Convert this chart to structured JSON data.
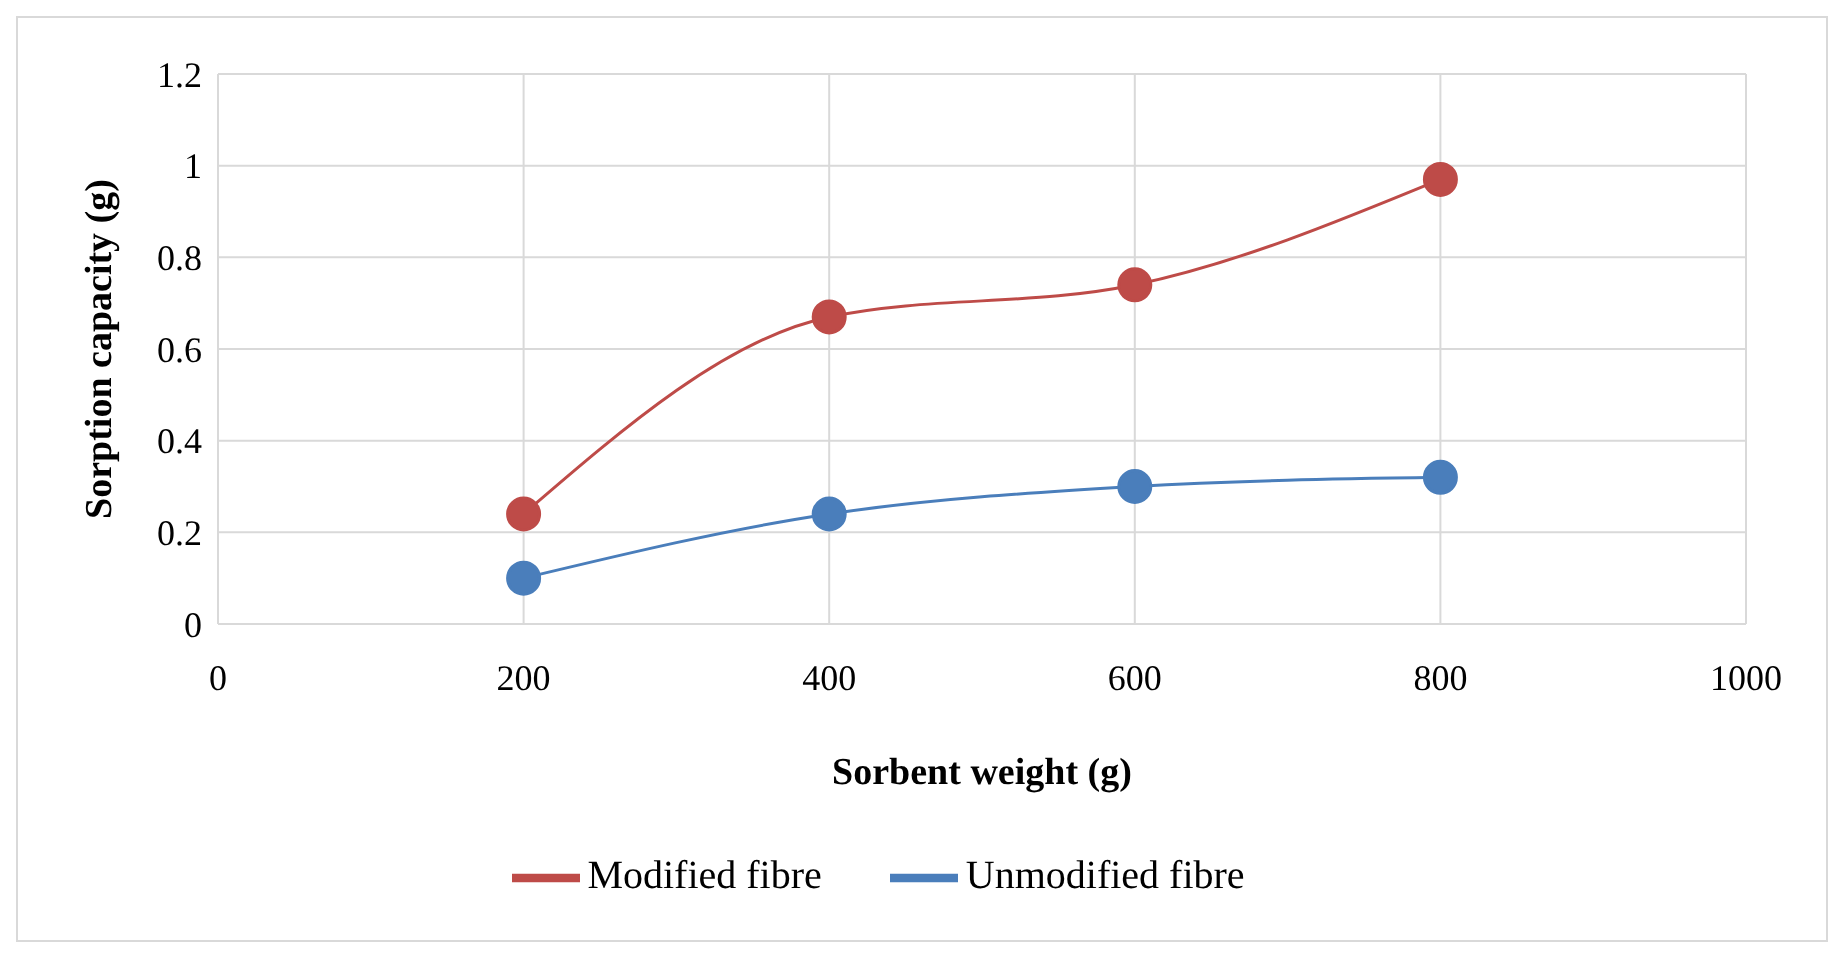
{
  "chart_data": {
    "type": "line",
    "xlabel": "Sorbent  weight (g)",
    "ylabel": "Sorption capacity  (g)",
    "x": [
      200,
      400,
      600,
      800
    ],
    "series": [
      {
        "name": "Unmodified fibre",
        "color": "#4a7ebb",
        "values": [
          0.1,
          0.24,
          0.3,
          0.32
        ]
      },
      {
        "name": "Modified fibre",
        "color": "#be4b48",
        "values": [
          0.24,
          0.67,
          0.74,
          0.97
        ]
      }
    ],
    "xlim": [
      0,
      1000
    ],
    "xticks": [
      0,
      200,
      400,
      600,
      800,
      1000
    ],
    "ylim": [
      0,
      1.2
    ],
    "yticks": [
      0,
      0.2,
      0.4,
      0.6,
      0.8,
      1,
      1.2
    ],
    "grid": true,
    "legend": "bottom",
    "marker": "circle",
    "line_style": "solid"
  }
}
